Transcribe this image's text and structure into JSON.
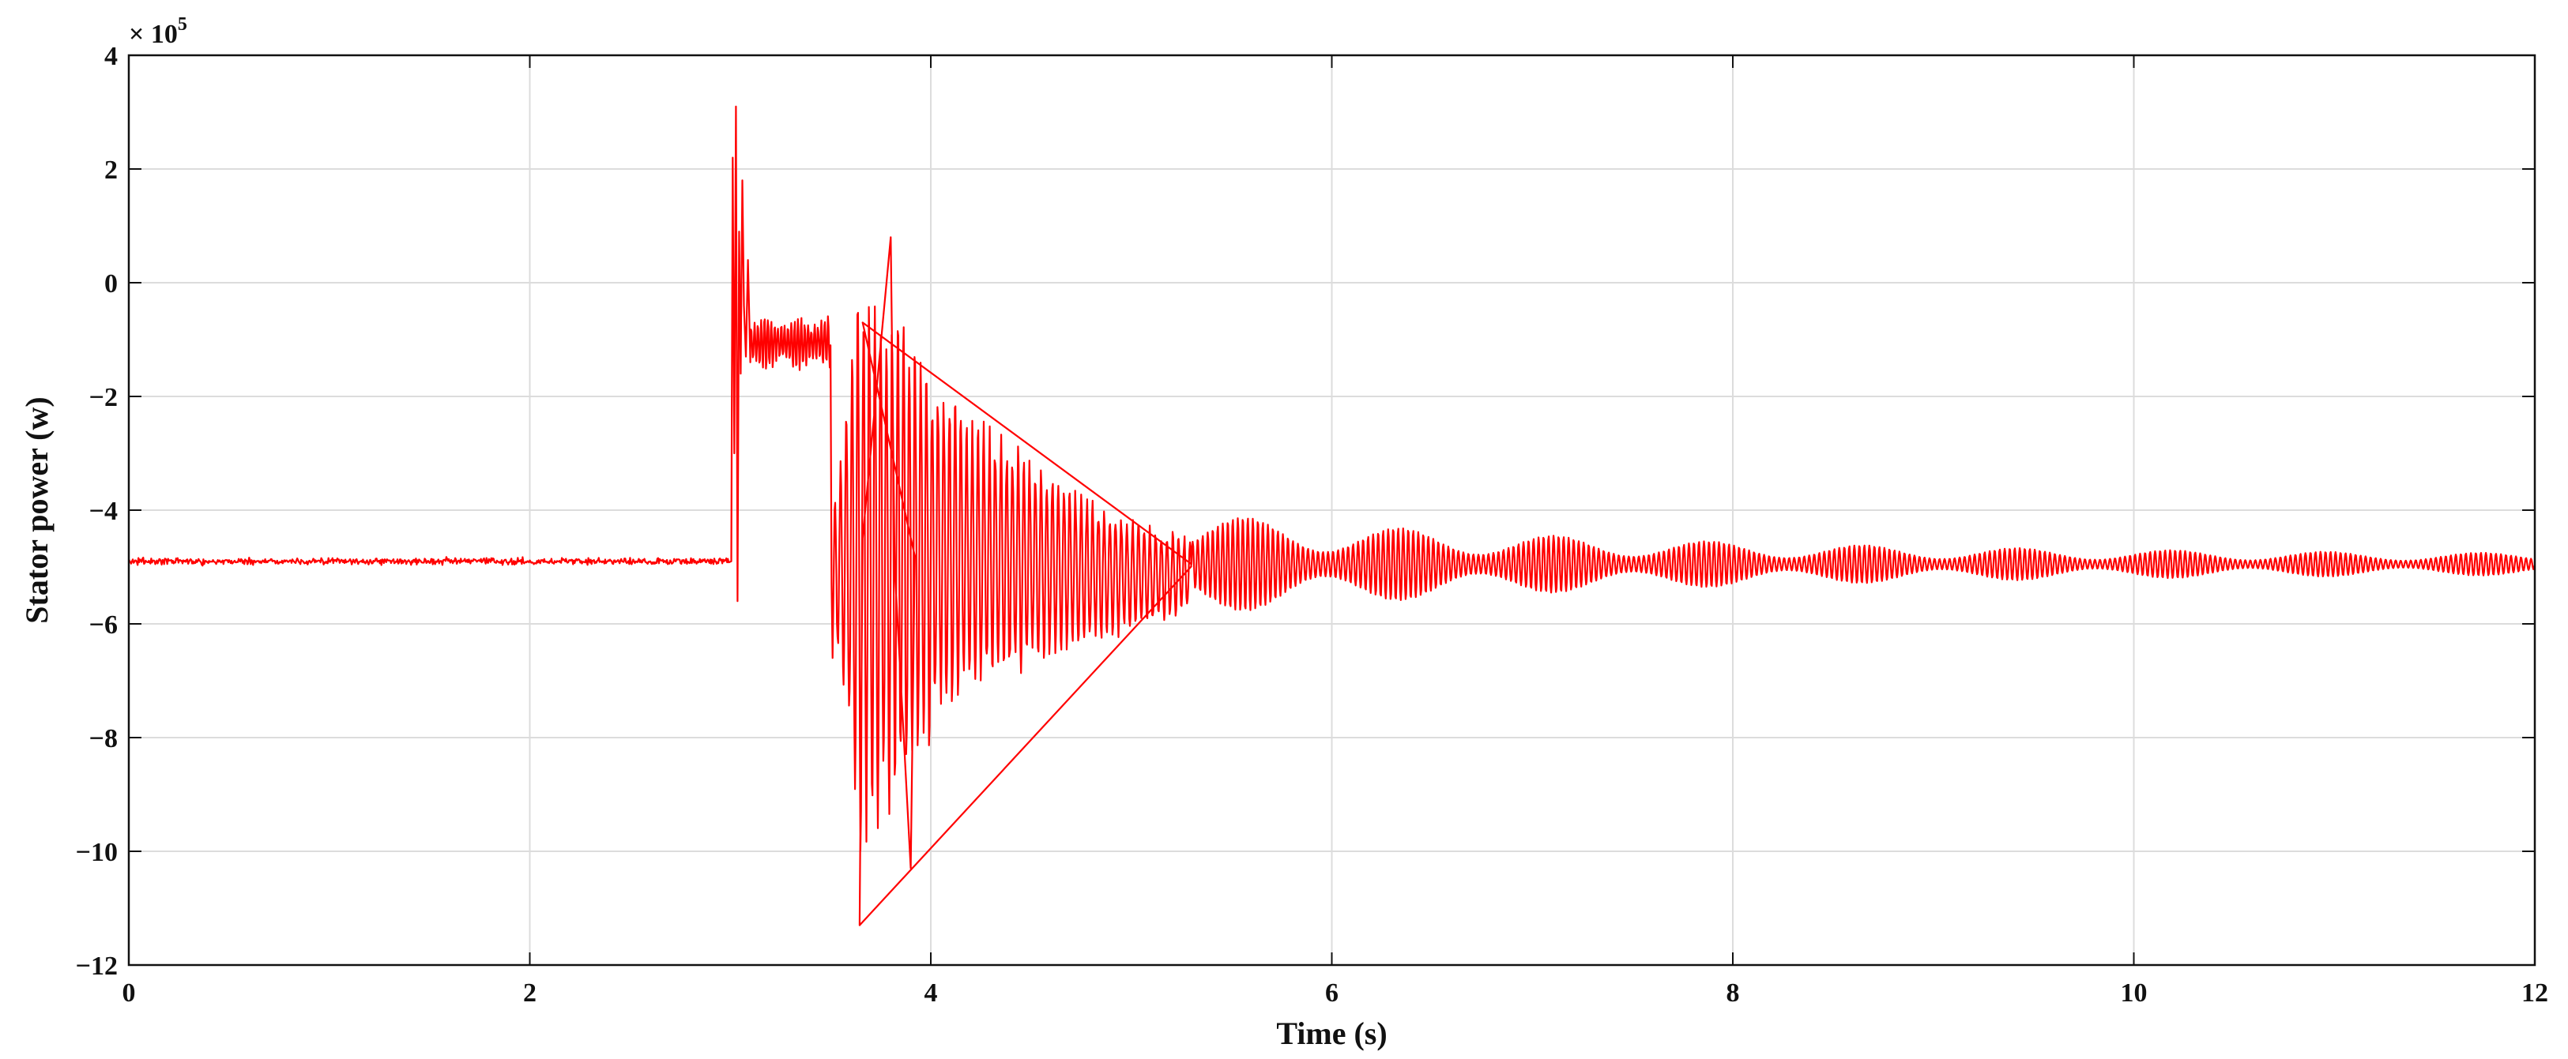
{
  "chart_data": {
    "type": "line",
    "xlabel": "Time (s)",
    "ylabel": "Stator power (w)",
    "y_exponent_label": "× 10",
    "y_exponent_power": "5",
    "xlim": [
      0,
      12
    ],
    "ylim": [
      -12,
      4
    ],
    "y_scale_factor": 100000,
    "x_ticks": [
      "0",
      "2",
      "4",
      "6",
      "8",
      "10",
      "12"
    ],
    "y_ticks": [
      "4",
      "2",
      "0",
      "−2",
      "−4",
      "−6",
      "−8",
      "−10",
      "−12"
    ],
    "grid": true,
    "colors": {
      "series": "#ff0000"
    },
    "series": [
      {
        "description_points": [
          {
            "x": 0.0,
            "y": -4.9
          },
          {
            "x": 3.0,
            "y": -4.9
          },
          {
            "x": 3.02,
            "y": 3.1
          },
          {
            "x": 3.04,
            "y": -5.6
          },
          {
            "x": 3.06,
            "y": 1.8
          },
          {
            "x": 3.1,
            "y": -1.0
          },
          {
            "x": 3.5,
            "y": -1.0
          },
          {
            "x": 3.65,
            "y": -11.3
          },
          {
            "x": 3.8,
            "y": 0.8
          },
          {
            "x": 3.9,
            "y": -10.3
          },
          {
            "x": 4.0,
            "y": -0.3
          },
          {
            "x": 4.5,
            "y": -8.5
          },
          {
            "x": 5.0,
            "y": -3.5
          },
          {
            "x": 5.3,
            "y": -4.2
          },
          {
            "x": 6.0,
            "y": -4.5
          },
          {
            "x": 8.0,
            "y": -4.7
          },
          {
            "x": 10.0,
            "y": -4.8
          },
          {
            "x": 12.0,
            "y": -4.9
          }
        ]
      }
    ]
  }
}
